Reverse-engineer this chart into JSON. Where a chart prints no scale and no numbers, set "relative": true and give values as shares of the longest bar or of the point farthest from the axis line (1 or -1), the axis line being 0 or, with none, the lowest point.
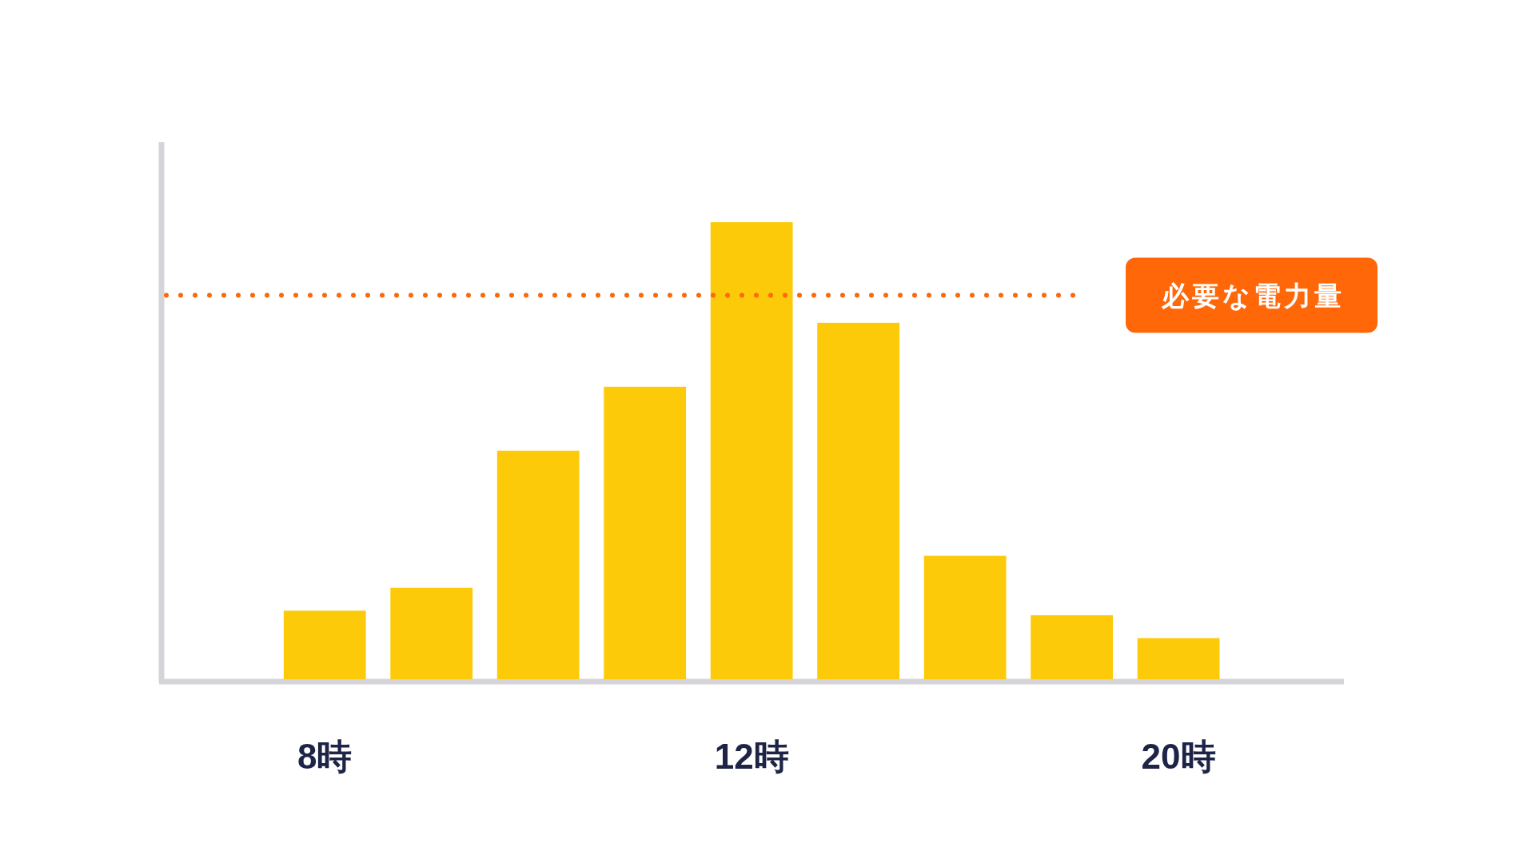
{
  "chart_data": {
    "type": "bar",
    "relative": true,
    "categories": [
      "8時",
      null,
      null,
      null,
      "12時",
      null,
      null,
      null,
      "20時"
    ],
    "values": [
      0.15,
      0.2,
      0.5,
      0.64,
      1,
      0.78,
      0.27,
      0.14,
      0.09
    ],
    "color": "#fdca0a",
    "tick_labels": "x",
    "ref_lines": [
      {
        "axis": "y",
        "value": 0.84,
        "label": "必要な電力量",
        "color": "#ff6709",
        "line_style": "dotted"
      }
    ]
  }
}
